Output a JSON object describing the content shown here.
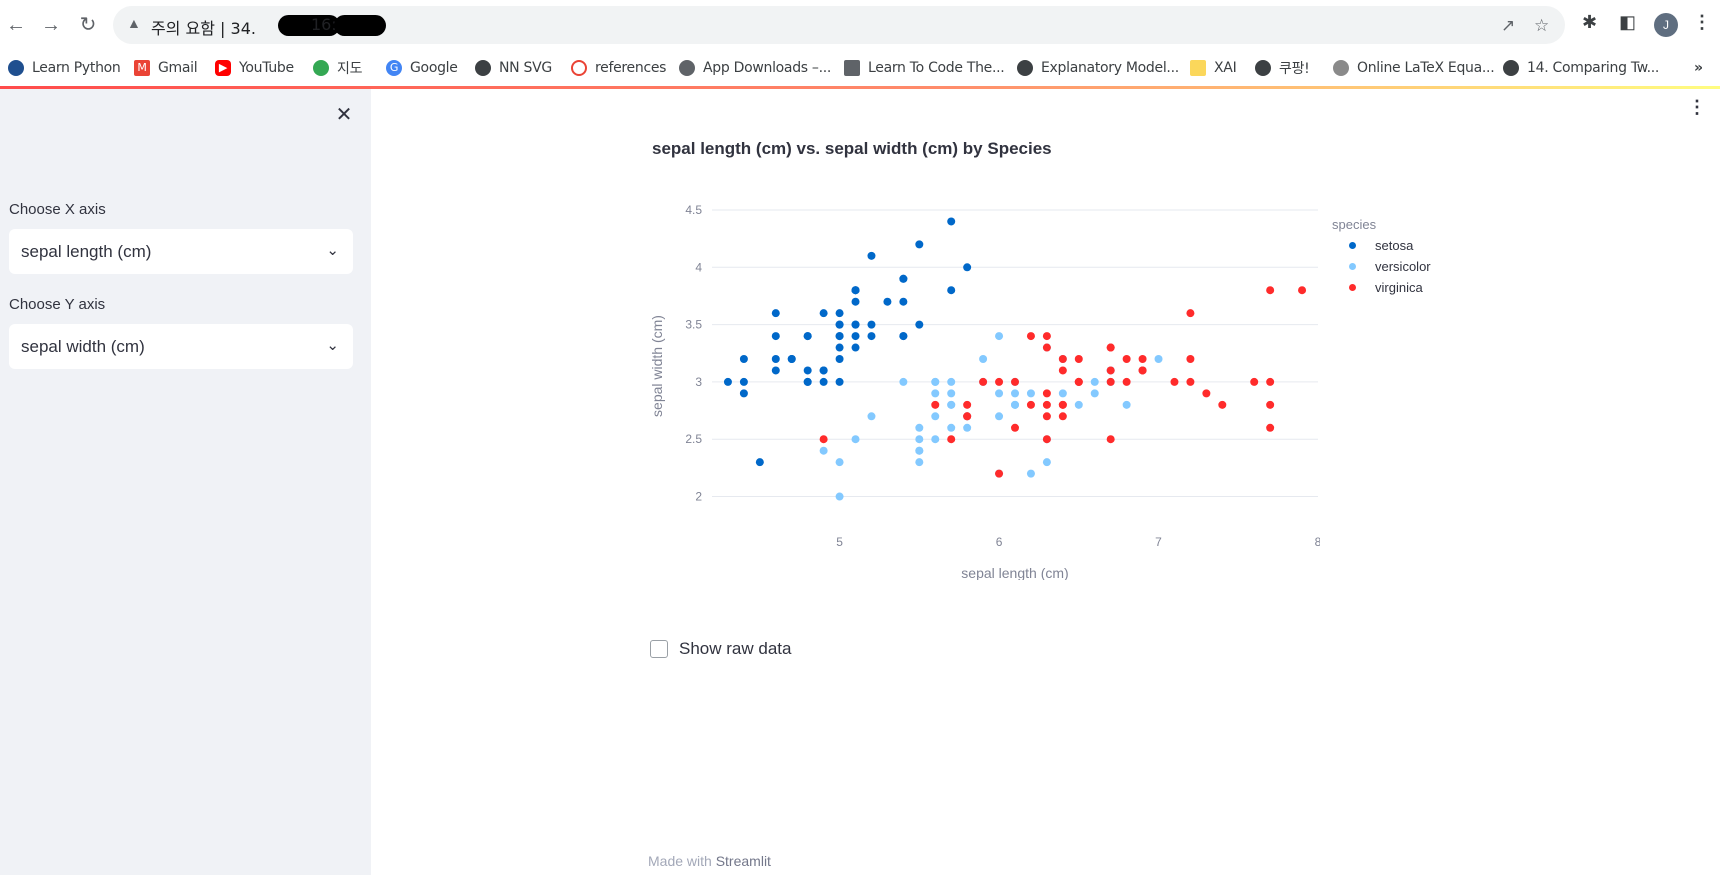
{
  "browser": {
    "url_warning": "주의 요함",
    "url_text": "주의 요함 | 34.",
    "url_mid": "16:",
    "profile_initial": "J",
    "bookmarks": [
      {
        "label": "Learn Python",
        "icon": "python-icon",
        "color": "#1f4f8f"
      },
      {
        "label": "Gmail",
        "icon": "gmail-icon",
        "color": "#ea4335"
      },
      {
        "label": "YouTube",
        "icon": "youtube-icon",
        "color": "#ff0000"
      },
      {
        "label": "지도",
        "icon": "maps-pin-icon",
        "color": "#34a853"
      },
      {
        "label": "Google",
        "icon": "google-icon",
        "color": "#4285f4"
      },
      {
        "label": "NN SVG",
        "icon": "globe-icon",
        "color": "#3c4043"
      },
      {
        "label": "references",
        "icon": "power-icon",
        "color": "#ea4335"
      },
      {
        "label": "App Downloads –...",
        "icon": "app-icon",
        "color": "#5f6368"
      },
      {
        "label": "Learn To Code The...",
        "icon": "mortarboard-icon",
        "color": "#5f6368"
      },
      {
        "label": "Explanatory Model...",
        "icon": "globe-icon",
        "color": "#3c4043"
      },
      {
        "label": "XAI",
        "icon": "folder-icon",
        "color": "#fbd75b"
      },
      {
        "label": "쿠팡!",
        "icon": "globe-icon",
        "color": "#3c4043"
      },
      {
        "label": "Online LaTeX Equa...",
        "icon": "gear-icon",
        "color": "#8a8a8a"
      },
      {
        "label": "14. Comparing Tw...",
        "icon": "globe-icon",
        "color": "#3c4043"
      }
    ],
    "more_bookmarks": "»"
  },
  "sidebar": {
    "x_label": "Choose X axis",
    "x_value": "sepal length (cm)",
    "y_label": "Choose Y axis",
    "y_value": "sepal width (cm)"
  },
  "main": {
    "checkbox_label": "Show raw data",
    "footer_prefix": "Made with",
    "footer_brand": "Streamlit"
  },
  "chart_data": {
    "type": "scatter",
    "title": "sepal length (cm) vs. sepal width (cm) by Species",
    "xlabel": "sepal length (cm)",
    "ylabel": "sepal width (cm)",
    "xlim": [
      4.2,
      8.0
    ],
    "ylim": [
      1.9,
      4.5
    ],
    "xticks": [
      5,
      6,
      7,
      8
    ],
    "yticks": [
      2,
      2.5,
      3,
      3.5,
      4,
      4.5
    ],
    "grid": true,
    "legend_title": "species",
    "legend_position": "top-right",
    "series": [
      {
        "name": "setosa",
        "color": "#0068c9",
        "points": [
          [
            5.1,
            3.5
          ],
          [
            4.9,
            3.0
          ],
          [
            4.7,
            3.2
          ],
          [
            4.6,
            3.1
          ],
          [
            5.0,
            3.6
          ],
          [
            5.4,
            3.9
          ],
          [
            4.6,
            3.4
          ],
          [
            5.0,
            3.4
          ],
          [
            4.4,
            2.9
          ],
          [
            4.9,
            3.1
          ],
          [
            5.4,
            3.7
          ],
          [
            4.8,
            3.4
          ],
          [
            4.8,
            3.0
          ],
          [
            4.3,
            3.0
          ],
          [
            5.8,
            4.0
          ],
          [
            5.7,
            4.4
          ],
          [
            5.4,
            3.9
          ],
          [
            5.1,
            3.5
          ],
          [
            5.7,
            3.8
          ],
          [
            5.1,
            3.8
          ],
          [
            5.4,
            3.4
          ],
          [
            5.1,
            3.7
          ],
          [
            4.6,
            3.6
          ],
          [
            5.1,
            3.3
          ],
          [
            4.8,
            3.4
          ],
          [
            5.0,
            3.0
          ],
          [
            5.0,
            3.4
          ],
          [
            5.2,
            3.5
          ],
          [
            5.2,
            3.4
          ],
          [
            4.7,
            3.2
          ],
          [
            4.8,
            3.1
          ],
          [
            5.4,
            3.4
          ],
          [
            5.2,
            4.1
          ],
          [
            5.5,
            4.2
          ],
          [
            4.9,
            3.1
          ],
          [
            5.0,
            3.2
          ],
          [
            5.5,
            3.5
          ],
          [
            4.9,
            3.6
          ],
          [
            4.4,
            3.0
          ],
          [
            5.1,
            3.4
          ],
          [
            5.0,
            3.5
          ],
          [
            4.5,
            2.3
          ],
          [
            4.4,
            3.2
          ],
          [
            5.0,
            3.5
          ],
          [
            5.1,
            3.8
          ],
          [
            4.8,
            3.0
          ],
          [
            5.1,
            3.8
          ],
          [
            4.6,
            3.2
          ],
          [
            5.3,
            3.7
          ],
          [
            5.0,
            3.3
          ]
        ]
      },
      {
        "name": "versicolor",
        "color": "#83c9ff",
        "points": [
          [
            7.0,
            3.2
          ],
          [
            6.4,
            3.2
          ],
          [
            6.9,
            3.1
          ],
          [
            5.5,
            2.3
          ],
          [
            6.5,
            2.8
          ],
          [
            5.7,
            2.8
          ],
          [
            6.3,
            3.3
          ],
          [
            4.9,
            2.4
          ],
          [
            6.6,
            2.9
          ],
          [
            5.2,
            2.7
          ],
          [
            5.0,
            2.0
          ],
          [
            5.9,
            3.0
          ],
          [
            6.0,
            2.2
          ],
          [
            6.1,
            2.9
          ],
          [
            5.6,
            2.9
          ],
          [
            6.7,
            3.1
          ],
          [
            5.6,
            3.0
          ],
          [
            5.8,
            2.7
          ],
          [
            6.2,
            2.2
          ],
          [
            5.6,
            2.5
          ],
          [
            5.9,
            3.2
          ],
          [
            6.1,
            2.8
          ],
          [
            6.3,
            2.5
          ],
          [
            6.1,
            2.8
          ],
          [
            6.4,
            2.9
          ],
          [
            6.6,
            3.0
          ],
          [
            6.8,
            2.8
          ],
          [
            6.7,
            3.0
          ],
          [
            6.0,
            2.9
          ],
          [
            5.7,
            2.6
          ],
          [
            5.5,
            2.4
          ],
          [
            5.5,
            2.4
          ],
          [
            5.8,
            2.7
          ],
          [
            6.0,
            2.7
          ],
          [
            5.4,
            3.0
          ],
          [
            6.0,
            3.4
          ],
          [
            6.7,
            3.1
          ],
          [
            6.3,
            2.3
          ],
          [
            5.6,
            3.0
          ],
          [
            5.5,
            2.5
          ],
          [
            5.5,
            2.6
          ],
          [
            6.1,
            3.0
          ],
          [
            5.8,
            2.6
          ],
          [
            5.0,
            2.3
          ],
          [
            5.6,
            2.7
          ],
          [
            5.7,
            3.0
          ],
          [
            5.7,
            2.9
          ],
          [
            6.2,
            2.9
          ],
          [
            5.1,
            2.5
          ],
          [
            5.7,
            2.8
          ]
        ]
      },
      {
        "name": "virginica",
        "color": "#ff2b2b",
        "points": [
          [
            6.3,
            3.3
          ],
          [
            5.8,
            2.7
          ],
          [
            7.1,
            3.0
          ],
          [
            6.3,
            2.9
          ],
          [
            6.5,
            3.0
          ],
          [
            7.6,
            3.0
          ],
          [
            4.9,
            2.5
          ],
          [
            7.3,
            2.9
          ],
          [
            6.7,
            2.5
          ],
          [
            7.2,
            3.6
          ],
          [
            6.5,
            3.2
          ],
          [
            6.4,
            2.7
          ],
          [
            6.8,
            3.0
          ],
          [
            5.7,
            2.5
          ],
          [
            5.8,
            2.8
          ],
          [
            6.4,
            3.2
          ],
          [
            6.5,
            3.0
          ],
          [
            7.7,
            3.8
          ],
          [
            7.7,
            2.6
          ],
          [
            6.0,
            2.2
          ],
          [
            6.9,
            3.2
          ],
          [
            5.6,
            2.8
          ],
          [
            7.7,
            2.8
          ],
          [
            6.3,
            2.7
          ],
          [
            6.7,
            3.3
          ],
          [
            7.2,
            3.2
          ],
          [
            6.2,
            2.8
          ],
          [
            6.1,
            3.0
          ],
          [
            6.4,
            2.8
          ],
          [
            7.2,
            3.0
          ],
          [
            7.4,
            2.8
          ],
          [
            7.9,
            3.8
          ],
          [
            6.4,
            2.8
          ],
          [
            6.3,
            2.8
          ],
          [
            6.1,
            2.6
          ],
          [
            7.7,
            3.0
          ],
          [
            6.3,
            3.4
          ],
          [
            6.4,
            3.1
          ],
          [
            6.0,
            3.0
          ],
          [
            6.9,
            3.1
          ],
          [
            6.7,
            3.1
          ],
          [
            6.9,
            3.1
          ],
          [
            5.8,
            2.7
          ],
          [
            6.8,
            3.2
          ],
          [
            6.7,
            3.3
          ],
          [
            6.7,
            3.0
          ],
          [
            6.3,
            2.5
          ],
          [
            6.5,
            3.0
          ],
          [
            6.2,
            3.4
          ],
          [
            5.9,
            3.0
          ]
        ]
      }
    ]
  }
}
